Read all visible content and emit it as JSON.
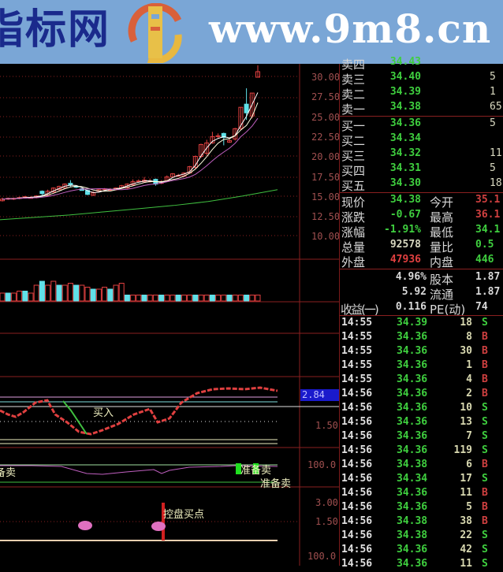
{
  "banner": {
    "brand": "指标网",
    "url": "www.9m8.cn",
    "logo_text": "www.9m8.cn"
  },
  "colors": {
    "up": "#e04040",
    "down": "#60e0e8",
    "ma5": "#ffffff",
    "ma10": "#ffffe0",
    "ma20": "#c060c0",
    "ma_long": "#40c040",
    "grid": "#8a2020",
    "axis": "#a05050"
  },
  "price_axis": [
    "30.00",
    "27.50",
    "25.00",
    "22.50",
    "20.00",
    "17.50",
    "15.00",
    "12.50",
    "10.00"
  ],
  "indicator_axis": {
    "current": "2.84",
    "l1": "1.50",
    "l2": "100.0",
    "l3": "3.00",
    "l4": "1.50",
    "l5": "100.0"
  },
  "annotations": {
    "buy": "买入",
    "prep_sell_left": "备卖",
    "prep_sell_right": "准备卖",
    "prep_sell_right2": "准备卖",
    "control_buy": "控盘买点"
  },
  "candles": [
    [
      14.4,
      14.8,
      14.3,
      14.6
    ],
    [
      14.6,
      14.8,
      14.5,
      14.7
    ],
    [
      14.6,
      14.8,
      14.5,
      14.7
    ],
    [
      14.7,
      14.9,
      14.6,
      14.8
    ],
    [
      14.8,
      15.0,
      14.7,
      14.9
    ],
    [
      14.8,
      15.0,
      14.7,
      14.8
    ],
    [
      14.8,
      15.1,
      14.7,
      15.0
    ],
    [
      15.6,
      15.7,
      15.1,
      15.3
    ],
    [
      15.0,
      15.8,
      15.0,
      15.6
    ],
    [
      15.5,
      16.1,
      15.4,
      16.0
    ],
    [
      15.8,
      16.3,
      15.7,
      16.2
    ],
    [
      16.0,
      16.6,
      15.9,
      16.5
    ],
    [
      16.6,
      17.0,
      16.2,
      16.4
    ],
    [
      16.2,
      16.3,
      16.0,
      16.1
    ],
    [
      15.9,
      16.0,
      15.7,
      15.7
    ],
    [
      15.7,
      15.8,
      15.1,
      15.2
    ],
    [
      15.1,
      15.6,
      15.0,
      15.4
    ],
    [
      15.6,
      15.9,
      15.5,
      15.8
    ],
    [
      15.8,
      16.0,
      15.7,
      15.9
    ],
    [
      15.8,
      16.0,
      15.7,
      15.8
    ],
    [
      15.8,
      16.1,
      15.7,
      16.0
    ],
    [
      16.0,
      16.4,
      15.9,
      16.3
    ],
    [
      16.0,
      16.6,
      15.9,
      16.5
    ],
    [
      16.4,
      17.1,
      16.3,
      16.8
    ],
    [
      16.8,
      17.1,
      16.7,
      16.9
    ],
    [
      16.8,
      17.4,
      16.7,
      17.0
    ],
    [
      16.8,
      17.2,
      16.7,
      16.9
    ],
    [
      17.1,
      17.2,
      16.3,
      16.5
    ],
    [
      16.6,
      17.0,
      16.5,
      16.8
    ],
    [
      16.9,
      17.6,
      16.8,
      17.4
    ],
    [
      17.4,
      17.9,
      17.3,
      17.8
    ],
    [
      17.5,
      17.8,
      17.4,
      17.6
    ],
    [
      17.5,
      18.0,
      17.4,
      17.9
    ],
    [
      17.9,
      18.8,
      17.8,
      18.7
    ],
    [
      18.6,
      20.1,
      18.4,
      20.0
    ],
    [
      20.0,
      21.6,
      19.8,
      21.5
    ],
    [
      20.4,
      22.1,
      20.1,
      21.7
    ],
    [
      21.7,
      23.1,
      21.6,
      22.5
    ],
    [
      22.5,
      22.9,
      22.3,
      22.6
    ],
    [
      22.9,
      23.0,
      21.4,
      22.4
    ],
    [
      21.8,
      22.2,
      21.7,
      22.0
    ],
    [
      22.2,
      23.6,
      22.0,
      23.5
    ],
    [
      23.5,
      26.2,
      23.3,
      26.2
    ],
    [
      26.6,
      28.6,
      24.6,
      25.5
    ],
    [
      25.1,
      28.0,
      24.8,
      28.0
    ],
    [
      30.0,
      31.5,
      30.0,
      30.7
    ]
  ],
  "ma_long": [
    12.0,
    12.3,
    12.6,
    13.0,
    13.4,
    13.8,
    14.3,
    15.0,
    15.8
  ],
  "volumes": [
    4,
    4,
    4,
    5,
    5,
    4,
    8,
    10,
    8,
    10,
    8,
    8,
    9,
    8,
    8,
    7,
    6,
    6,
    7,
    6,
    8,
    9,
    3,
    3,
    3,
    3,
    3,
    3,
    3,
    3,
    3,
    3,
    3,
    3,
    3,
    3,
    3,
    3,
    3,
    3,
    3,
    3,
    3,
    3,
    3,
    3
  ],
  "quote": {
    "sell": [
      {
        "label": "卖四",
        "price": "34.43",
        "vol": ""
      },
      {
        "label": "卖三",
        "price": "34.40",
        "vol": "5"
      },
      {
        "label": "卖二",
        "price": "34.39",
        "vol": "1"
      },
      {
        "label": "卖一",
        "price": "34.38",
        "vol": "65"
      }
    ],
    "buy": [
      {
        "label": "买一",
        "price": "34.36",
        "vol": "5"
      },
      {
        "label": "买二",
        "price": "34.34",
        "vol": ""
      },
      {
        "label": "买三",
        "price": "34.32",
        "vol": "11"
      },
      {
        "label": "买四",
        "price": "34.31",
        "vol": "5"
      },
      {
        "label": "买五",
        "price": "34.30",
        "vol": "18"
      }
    ],
    "stats": [
      {
        "l": "现价",
        "v": "34.38",
        "vc": "#3fcf3f",
        "l2": "今开",
        "v2": "35.1",
        "v2c": "#d04040"
      },
      {
        "l": "涨跌",
        "v": "-0.67",
        "vc": "#3fcf3f",
        "l2": "最高",
        "v2": "36.1",
        "v2c": "#d04040"
      },
      {
        "l": "涨幅",
        "v": "-1.91%",
        "vc": "#3fcf3f",
        "l2": "最低",
        "v2": "34.1",
        "v2c": "#3fcf3f"
      },
      {
        "l": "总量",
        "v": "92578",
        "vc": "#d8d8c0",
        "l2": "量比",
        "v2": "0.5",
        "v2c": "#3fcf3f"
      },
      {
        "l": "外盘",
        "v": "47936",
        "vc": "#e04040",
        "l2": "内盘",
        "v2": "446",
        "v2c": "#3fcf3f"
      }
    ],
    "fin": [
      {
        "l": "",
        "v": "4.96%",
        "l2": "股本",
        "v2": "1.87"
      },
      {
        "l": "",
        "v": "5.92",
        "l2": "流通",
        "v2": "1.87"
      },
      {
        "l": "收益(一)",
        "v": "0.116",
        "l2": "PE(动)",
        "v2": "74"
      }
    ]
  },
  "ticks": [
    [
      "14:55",
      "34.39",
      "18",
      "S"
    ],
    [
      "14:55",
      "34.36",
      "8",
      "B"
    ],
    [
      "14:55",
      "34.36",
      "30",
      "B"
    ],
    [
      "14:55",
      "34.36",
      "1",
      "B"
    ],
    [
      "14:55",
      "34.36",
      "4",
      "B"
    ],
    [
      "14:56",
      "34.36",
      "2",
      "B"
    ],
    [
      "14:56",
      "34.36",
      "10",
      "S"
    ],
    [
      "14:56",
      "34.36",
      "13",
      "S"
    ],
    [
      "14:56",
      "34.36",
      "7",
      "S"
    ],
    [
      "14:56",
      "34.36",
      "119",
      "S"
    ],
    [
      "14:56",
      "34.38",
      "6",
      "B"
    ],
    [
      "14:56",
      "34.34",
      "17",
      "S"
    ],
    [
      "14:56",
      "34.36",
      "11",
      "B"
    ],
    [
      "14:56",
      "34.36",
      "5",
      "B"
    ],
    [
      "14:56",
      "34.38",
      "38",
      "B"
    ],
    [
      "14:56",
      "34.38",
      "22",
      "S"
    ],
    [
      "14:56",
      "34.36",
      "42",
      "S"
    ],
    [
      "14:56",
      "34.36",
      "11",
      "S"
    ]
  ]
}
